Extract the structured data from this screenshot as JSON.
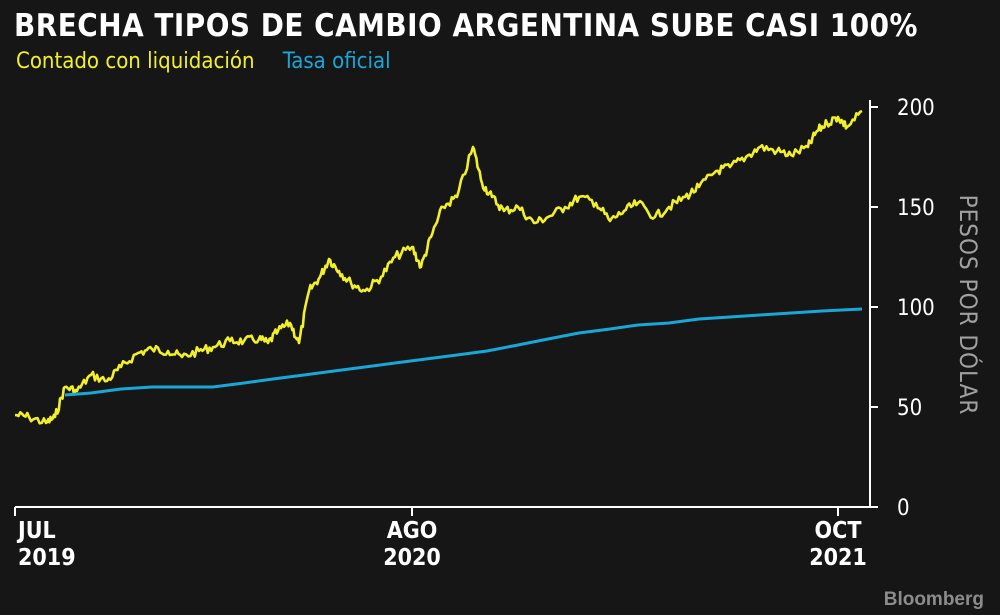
{
  "title": "BRECHA TIPOS DE CAMBIO ARGENTINA SUBE CASI 100%",
  "credit": "Bloomberg",
  "colors": {
    "background": "#161616",
    "series_ccl": "#f2f02a",
    "series_oficial": "#19a7d8",
    "axis": "#ffffff",
    "tick_label": "#ffffff",
    "ylabel": "#a0a0a0"
  },
  "chart_data": {
    "type": "line",
    "title": "BRECHA TIPOS DE CAMBIO ARGENTINA SUBE CASI 100%",
    "xlabel": "",
    "ylabel": "PESOS POR DÓLAR",
    "ylim": [
      0,
      200
    ],
    "xlim": [
      "2019-07-01",
      "2021-10-31"
    ],
    "grid": false,
    "legend_position": "top-left",
    "y_ticks": [
      "0",
      "50",
      "100",
      "150",
      "200"
    ],
    "x_ticks": [
      {
        "date": "2019-07-01",
        "line1": "JUL",
        "line2": "2019"
      },
      {
        "date": "2020-08-01",
        "line1": "AGO",
        "line2": "2020"
      },
      {
        "date": "2021-10-01",
        "line1": "OCT",
        "line2": "2021"
      }
    ],
    "series": [
      {
        "name": "Contado con liquidación",
        "color": "#f2f02a",
        "points": [
          [
            "2019-07-01",
            46
          ],
          [
            "2019-07-15",
            45
          ],
          [
            "2019-08-01",
            42
          ],
          [
            "2019-08-10",
            45
          ],
          [
            "2019-08-20",
            60
          ],
          [
            "2019-09-01",
            58
          ],
          [
            "2019-09-15",
            66
          ],
          [
            "2019-10-01",
            63
          ],
          [
            "2019-10-15",
            70
          ],
          [
            "2019-11-01",
            77
          ],
          [
            "2019-11-15",
            79
          ],
          [
            "2019-12-01",
            78
          ],
          [
            "2019-12-15",
            75
          ],
          [
            "2020-01-01",
            78
          ],
          [
            "2020-01-15",
            80
          ],
          [
            "2020-02-01",
            83
          ],
          [
            "2020-02-15",
            83
          ],
          [
            "2020-03-01",
            84
          ],
          [
            "2020-03-10",
            82
          ],
          [
            "2020-03-20",
            88
          ],
          [
            "2020-04-01",
            92
          ],
          [
            "2020-04-10",
            82
          ],
          [
            "2020-04-20",
            108
          ],
          [
            "2020-05-01",
            115
          ],
          [
            "2020-05-10",
            124
          ],
          [
            "2020-05-20",
            118
          ],
          [
            "2020-06-01",
            112
          ],
          [
            "2020-06-15",
            108
          ],
          [
            "2020-07-01",
            115
          ],
          [
            "2020-07-15",
            125
          ],
          [
            "2020-08-01",
            130
          ],
          [
            "2020-08-10",
            120
          ],
          [
            "2020-08-20",
            135
          ],
          [
            "2020-09-01",
            150
          ],
          [
            "2020-09-15",
            155
          ],
          [
            "2020-10-01",
            180
          ],
          [
            "2020-10-10",
            162
          ],
          [
            "2020-10-20",
            155
          ],
          [
            "2020-11-01",
            148
          ],
          [
            "2020-11-15",
            150
          ],
          [
            "2020-12-01",
            142
          ],
          [
            "2020-12-15",
            145
          ],
          [
            "2021-01-01",
            150
          ],
          [
            "2021-01-15",
            155
          ],
          [
            "2021-02-01",
            152
          ],
          [
            "2021-02-15",
            143
          ],
          [
            "2021-03-01",
            148
          ],
          [
            "2021-03-15",
            152
          ],
          [
            "2021-04-01",
            145
          ],
          [
            "2021-04-15",
            150
          ],
          [
            "2021-05-01",
            155
          ],
          [
            "2021-05-15",
            160
          ],
          [
            "2021-06-01",
            168
          ],
          [
            "2021-06-15",
            170
          ],
          [
            "2021-07-01",
            175
          ],
          [
            "2021-07-15",
            180
          ],
          [
            "2021-08-01",
            178
          ],
          [
            "2021-08-15",
            176
          ],
          [
            "2021-09-01",
            180
          ],
          [
            "2021-09-10",
            188
          ],
          [
            "2021-09-20",
            192
          ],
          [
            "2021-10-01",
            195
          ],
          [
            "2021-10-10",
            190
          ],
          [
            "2021-10-25",
            198
          ]
        ]
      },
      {
        "name": "Tasa oficial",
        "color": "#19a7d8",
        "points": [
          [
            "2019-08-20",
            56
          ],
          [
            "2019-09-15",
            57
          ],
          [
            "2019-10-15",
            59
          ],
          [
            "2019-11-15",
            60
          ],
          [
            "2019-12-15",
            60
          ],
          [
            "2020-01-15",
            60
          ],
          [
            "2020-02-15",
            62
          ],
          [
            "2020-03-15",
            64
          ],
          [
            "2020-04-15",
            66
          ],
          [
            "2020-05-15",
            68
          ],
          [
            "2020-06-15",
            70
          ],
          [
            "2020-07-15",
            72
          ],
          [
            "2020-08-15",
            74
          ],
          [
            "2020-09-15",
            76
          ],
          [
            "2020-10-15",
            78
          ],
          [
            "2020-11-15",
            81
          ],
          [
            "2020-12-15",
            84
          ],
          [
            "2021-01-15",
            87
          ],
          [
            "2021-02-15",
            89
          ],
          [
            "2021-03-15",
            91
          ],
          [
            "2021-04-15",
            92
          ],
          [
            "2021-05-15",
            94
          ],
          [
            "2021-06-15",
            95
          ],
          [
            "2021-07-15",
            96
          ],
          [
            "2021-08-15",
            97
          ],
          [
            "2021-09-15",
            98
          ],
          [
            "2021-10-25",
            99
          ]
        ]
      }
    ]
  }
}
